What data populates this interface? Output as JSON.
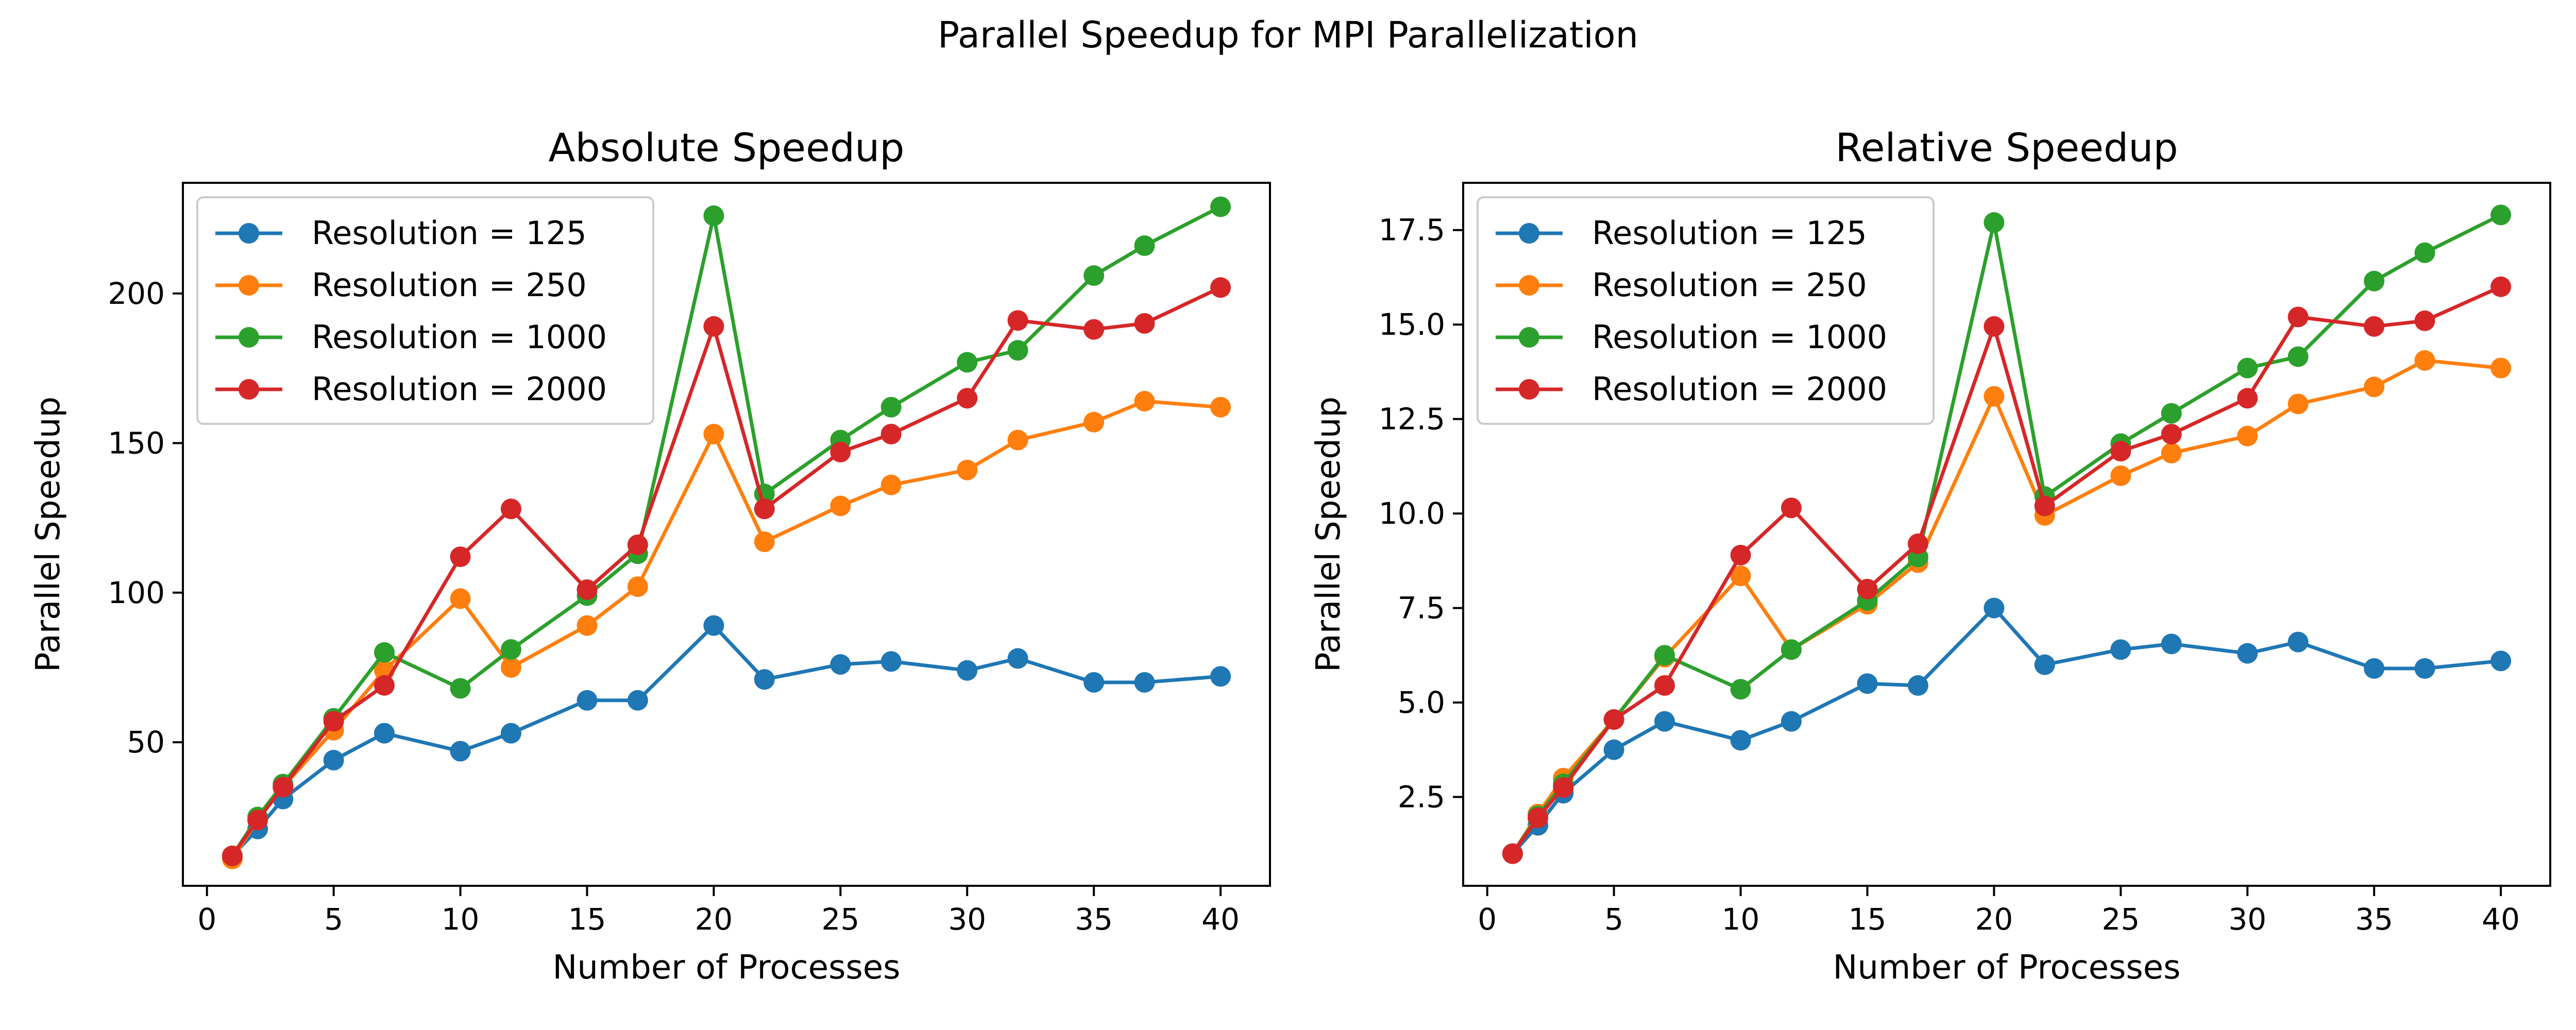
{
  "figure_title": "Parallel Speedup for MPI Parallelization",
  "colors": {
    "Resolution = 125": "#1f77b4",
    "Resolution = 250": "#ff7f0e",
    "Resolution = 1000": "#2ca02c",
    "Resolution = 2000": "#d62728"
  },
  "chart_data": [
    {
      "type": "line",
      "title": "Absolute Speedup",
      "xlabel": "Number of Processes",
      "ylabel": "Parallel Speedup",
      "xlim": [
        -0.95,
        41.95
      ],
      "ylim": [
        2,
        237
      ],
      "xticks": [
        0,
        5,
        10,
        15,
        20,
        25,
        30,
        35,
        40
      ],
      "yticks": [
        50,
        100,
        150,
        200
      ],
      "grid": false,
      "legend": "top-left",
      "x": [
        1,
        2,
        3,
        5,
        7,
        10,
        12,
        15,
        17,
        20,
        22,
        25,
        27,
        30,
        32,
        35,
        37,
        40
      ],
      "series": [
        {
          "name": "Resolution = 125",
          "values": [
            12,
            21,
            31,
            44,
            53,
            47,
            53,
            64,
            64,
            89,
            71,
            76,
            77,
            74,
            78,
            70,
            70,
            72
          ]
        },
        {
          "name": "Resolution = 250",
          "values": [
            11,
            24,
            35,
            54,
            74,
            98,
            75,
            89,
            102,
            153,
            117,
            129,
            136,
            141,
            151,
            157,
            164,
            162
          ]
        },
        {
          "name": "Resolution = 1000",
          "values": [
            12,
            25,
            36,
            58,
            80,
            68,
            81,
            99,
            113,
            226,
            133,
            151,
            162,
            177,
            181,
            206,
            216,
            229
          ]
        },
        {
          "name": "Resolution = 2000",
          "values": [
            12,
            24,
            35,
            57,
            69,
            112,
            128,
            101,
            116,
            189,
            128,
            147,
            153,
            165,
            191,
            188,
            190,
            202
          ]
        }
      ]
    },
    {
      "type": "line",
      "title": "Relative Speedup",
      "xlabel": "Number of Processes",
      "ylabel": "Parallel Speedup",
      "xlim": [
        -0.95,
        41.95
      ],
      "ylim": [
        0.15,
        18.75
      ],
      "xticks": [
        0,
        5,
        10,
        15,
        20,
        25,
        30,
        35,
        40
      ],
      "yticks": [
        2.5,
        5.0,
        7.5,
        10.0,
        12.5,
        15.0,
        17.5
      ],
      "ytick_labels": [
        "2.5",
        "5.0",
        "7.5",
        "10.0",
        "12.5",
        "15.0",
        "17.5"
      ],
      "grid": false,
      "legend": "top-left",
      "x": [
        1,
        2,
        3,
        5,
        7,
        10,
        12,
        15,
        17,
        20,
        22,
        25,
        27,
        30,
        32,
        35,
        37,
        40
      ],
      "series": [
        {
          "name": "Resolution = 125",
          "values": [
            1.0,
            1.75,
            2.6,
            3.75,
            4.5,
            4.0,
            4.5,
            5.5,
            5.45,
            7.5,
            6.0,
            6.4,
            6.55,
            6.3,
            6.6,
            5.9,
            5.9,
            6.1
          ]
        },
        {
          "name": "Resolution = 250",
          "values": [
            1.0,
            2.05,
            3.0,
            4.55,
            6.2,
            8.35,
            6.4,
            7.6,
            8.7,
            13.1,
            9.95,
            11.0,
            11.6,
            12.05,
            12.9,
            13.35,
            14.05,
            13.85
          ]
        },
        {
          "name": "Resolution = 1000",
          "values": [
            1.0,
            2.0,
            2.85,
            4.55,
            6.25,
            5.35,
            6.4,
            7.7,
            8.85,
            17.7,
            10.45,
            11.85,
            12.65,
            13.85,
            14.15,
            16.15,
            16.9,
            17.9
          ]
        },
        {
          "name": "Resolution = 2000",
          "values": [
            1.0,
            1.95,
            2.75,
            4.55,
            5.45,
            8.9,
            10.15,
            8.0,
            9.2,
            14.95,
            10.2,
            11.65,
            12.1,
            13.05,
            15.2,
            14.95,
            15.1,
            16.0
          ]
        }
      ]
    }
  ]
}
